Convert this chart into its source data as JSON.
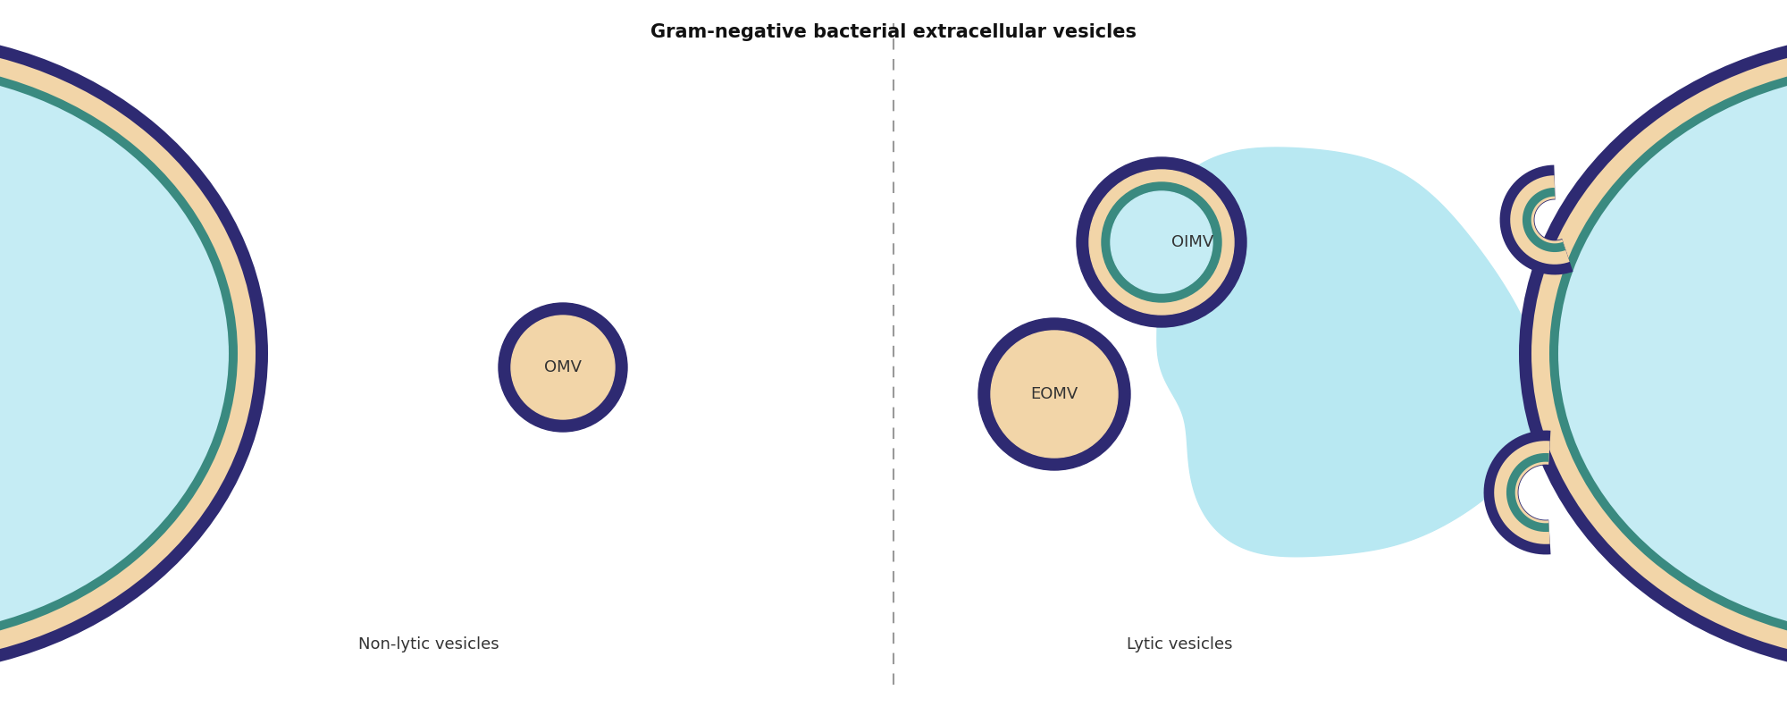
{
  "title": "Gram-negative bacterial extracellular vesicles",
  "title_fontsize": 15,
  "title_fontweight": "bold",
  "bg_color": "#ffffff",
  "cell_interior_color": "#c5ecf4",
  "outer_membrane_color": "#2e2a72",
  "periplasm_color": "#f2d5a8",
  "inner_membrane_color": "#3a8a80",
  "omv_fill": "#f2d5a8",
  "omv_border": "#2e2a72",
  "oimv_inner_fill": "#c5ecf4",
  "oimv_inner_border": "#3a8a80",
  "blob_color": "#b8e8f2",
  "dashed_line_color": "#999999",
  "label_color": "#333333",
  "label_fontsize": 13,
  "omv_label": "OMV",
  "eomv_label": "EOMV",
  "oimv_label": "OIMV",
  "nonlytic_label": "Non-lytic vesicles",
  "lytic_label": "Lytic vesicles",
  "mem_thick": 0.14,
  "peri_thick": 0.2,
  "im_thick": 0.1
}
